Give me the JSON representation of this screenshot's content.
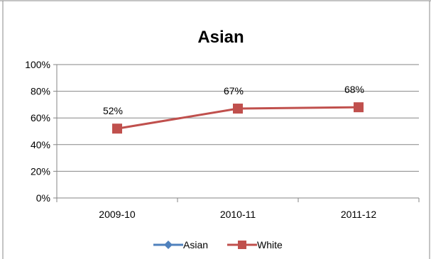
{
  "chart_data": {
    "type": "line",
    "title": "Asian",
    "categories": [
      "2009-10",
      "2010-11",
      "2011-12"
    ],
    "series": [
      {
        "name": "Asian",
        "values": [
          null,
          null,
          null
        ],
        "color": "#4F81BD",
        "marker": "diamond"
      },
      {
        "name": "White",
        "values": [
          52,
          67,
          68
        ],
        "color": "#C0504D",
        "marker": "square",
        "labels": [
          "52%",
          "67%",
          "68%"
        ]
      }
    ],
    "y_ticks": [
      "0%",
      "20%",
      "40%",
      "60%",
      "80%",
      "100%"
    ],
    "ylim": [
      0,
      100
    ],
    "grid": true,
    "legend": "bottom"
  }
}
